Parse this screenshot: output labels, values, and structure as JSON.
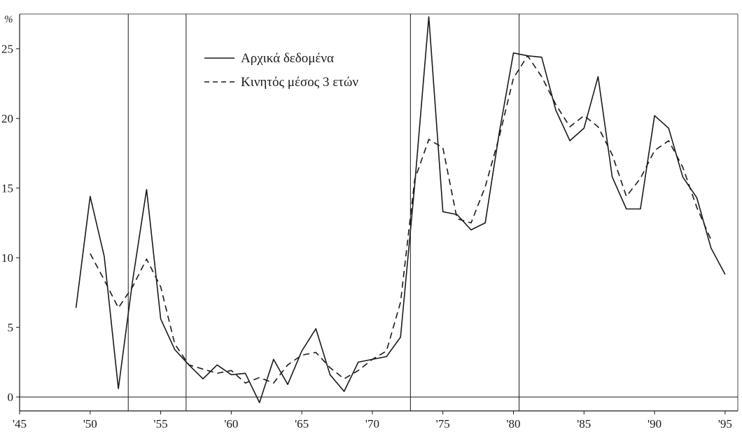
{
  "chart_data": {
    "type": "line",
    "ylabel": "%",
    "xlim": [
      1945,
      1995.9
    ],
    "ylim": [
      -1,
      27.5
    ],
    "x_ticks": [
      {
        "value": 1945,
        "label": "'45"
      },
      {
        "value": 1950,
        "label": "'50"
      },
      {
        "value": 1955,
        "label": "'55"
      },
      {
        "value": 1960,
        "label": "'60"
      },
      {
        "value": 1965,
        "label": "'65"
      },
      {
        "value": 1970,
        "label": "'70"
      },
      {
        "value": 1975,
        "label": "'75"
      },
      {
        "value": 1980,
        "label": "'80"
      },
      {
        "value": 1985,
        "label": "'85"
      },
      {
        "value": 1990,
        "label": "'90"
      },
      {
        "value": 1995,
        "label": "'95"
      }
    ],
    "y_ticks": [
      {
        "value": 0,
        "label": "0"
      },
      {
        "value": 5,
        "label": "5"
      },
      {
        "value": 10,
        "label": "10"
      },
      {
        "value": 15,
        "label": "15"
      },
      {
        "value": 20,
        "label": "20"
      },
      {
        "value": 25,
        "label": "25"
      }
    ],
    "vertical_lines": [
      1952.7,
      1956.8,
      1972.7,
      1980.4
    ],
    "legend_position": "top-left (inside plot, right of first vertical line)",
    "series": [
      {
        "name": "Αρχικά δεδομένα",
        "style": "solid",
        "color": "#1a1a1a",
        "x": [
          1949,
          1950,
          1951,
          1952,
          1953,
          1954,
          1955,
          1956,
          1957,
          1958,
          1959,
          1960,
          1961,
          1962,
          1963,
          1964,
          1965,
          1966,
          1967,
          1968,
          1969,
          1970,
          1971,
          1972,
          1973,
          1974,
          1975,
          1976,
          1977,
          1978,
          1979,
          1980,
          1981,
          1982,
          1983,
          1984,
          1985,
          1986,
          1987,
          1988,
          1989,
          1990,
          1991,
          1992,
          1993,
          1994,
          1995
        ],
        "values": [
          6.4,
          14.4,
          10.1,
          0.6,
          8.3,
          14.9,
          5.6,
          3.4,
          2.3,
          1.3,
          2.3,
          1.6,
          1.7,
          -0.4,
          2.7,
          0.9,
          3.3,
          4.9,
          1.6,
          0.4,
          2.5,
          2.7,
          2.9,
          4.3,
          15.2,
          27.3,
          13.3,
          13.1,
          12.0,
          12.5,
          19.0,
          24.7,
          24.5,
          24.4,
          20.6,
          18.4,
          19.3,
          23.0,
          15.8,
          13.5,
          13.5,
          20.2,
          19.3,
          15.8,
          14.3,
          10.7,
          8.8
        ]
      },
      {
        "name": "Κινητός μέσος 3 ετών",
        "style": "dashed",
        "color": "#1a1a1a",
        "x": [
          1950,
          1951,
          1952,
          1953,
          1954,
          1955,
          1956,
          1957,
          1958,
          1959,
          1960,
          1961,
          1962,
          1963,
          1964,
          1965,
          1966,
          1967,
          1968,
          1969,
          1970,
          1971,
          1972,
          1973,
          1974,
          1975,
          1976,
          1977,
          1978,
          1979,
          1980,
          1981,
          1982,
          1983,
          1984,
          1985,
          1986,
          1987,
          1988,
          1989,
          1990,
          1991,
          1992,
          1993,
          1994
        ],
        "values": [
          10.3,
          8.4,
          6.4,
          7.9,
          9.9,
          7.9,
          3.8,
          2.3,
          2.0,
          1.7,
          1.9,
          1.0,
          1.4,
          1.0,
          2.3,
          3.0,
          3.2,
          2.1,
          1.3,
          1.9,
          2.7,
          3.3,
          6.8,
          15.6,
          18.5,
          17.9,
          12.8,
          12.5,
          15.1,
          18.7,
          22.9,
          24.5,
          23.0,
          21.0,
          19.4,
          20.2,
          19.4,
          17.4,
          14.4,
          15.7,
          17.7,
          18.4,
          16.5,
          13.6,
          11.3
        ]
      }
    ]
  }
}
